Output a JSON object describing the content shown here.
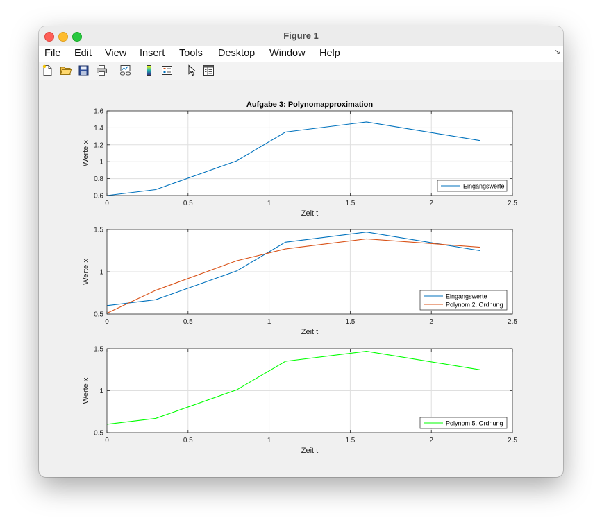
{
  "window": {
    "title": "Figure 1"
  },
  "menubar": {
    "items": [
      "File",
      "Edit",
      "View",
      "Insert",
      "Tools",
      "Desktop",
      "Window",
      "Help"
    ],
    "corner_icon": "dock-arrow-icon"
  },
  "toolbar": {
    "icons": [
      "new-figure-icon",
      "open-file-icon",
      "save-icon",
      "print-icon",
      "link-axes-icon",
      "colorbar-icon",
      "legend-icon",
      "pointer-icon",
      "property-inspector-icon"
    ]
  },
  "colors": {
    "blue": "#0072bd",
    "orange": "#d95319",
    "green": "#00ff00"
  },
  "chart_data": [
    {
      "type": "line",
      "title": "Aufgabe 3: Polynomapproximation",
      "xlabel": "Zeit t",
      "ylabel": "Werte x",
      "xlim": [
        0,
        2.5
      ],
      "ylim": [
        0.6,
        1.6
      ],
      "xticks": [
        "0",
        "0.5",
        "1",
        "1.5",
        "2",
        "2.5"
      ],
      "yticks": [
        "0.6",
        "0.8",
        "1",
        "1.2",
        "1.4",
        "1.6"
      ],
      "grid": true,
      "legend_position": "bottom-right",
      "series": [
        {
          "name": "Eingangswerte",
          "color": "#0072bd",
          "x": [
            0,
            0.3,
            0.8,
            1.1,
            1.6,
            2.3
          ],
          "y": [
            0.6,
            0.67,
            1.01,
            1.35,
            1.47,
            1.25
          ]
        }
      ]
    },
    {
      "type": "line",
      "title": "",
      "xlabel": "Zeit t",
      "ylabel": "Werte x",
      "xlim": [
        0,
        2.5
      ],
      "ylim": [
        0.5,
        1.5
      ],
      "xticks": [
        "0",
        "0.5",
        "1",
        "1.5",
        "2",
        "2.5"
      ],
      "yticks": [
        "0.5",
        "1",
        "1.5"
      ],
      "grid": true,
      "legend_position": "bottom-right",
      "series": [
        {
          "name": "Eingangswerte",
          "color": "#0072bd",
          "x": [
            0,
            0.3,
            0.8,
            1.1,
            1.6,
            2.3
          ],
          "y": [
            0.6,
            0.67,
            1.01,
            1.35,
            1.47,
            1.25
          ]
        },
        {
          "name": "Polynom 2. Ordnung",
          "color": "#d95319",
          "x": [
            0,
            0.3,
            0.8,
            1.1,
            1.6,
            2.3
          ],
          "y": [
            0.51,
            0.78,
            1.13,
            1.27,
            1.39,
            1.29
          ]
        }
      ]
    },
    {
      "type": "line",
      "title": "",
      "xlabel": "Zeit t",
      "ylabel": "Werte x",
      "xlim": [
        0,
        2.5
      ],
      "ylim": [
        0.5,
        1.5
      ],
      "xticks": [
        "0",
        "0.5",
        "1",
        "1.5",
        "2",
        "2.5"
      ],
      "yticks": [
        "0.5",
        "1",
        "1.5"
      ],
      "grid": true,
      "legend_position": "bottom-right",
      "series": [
        {
          "name": "Polynom 5. Ordnung",
          "color": "#00ff00",
          "x": [
            0,
            0.3,
            0.8,
            1.1,
            1.6,
            2.3
          ],
          "y": [
            0.6,
            0.67,
            1.01,
            1.35,
            1.47,
            1.25
          ]
        }
      ]
    }
  ]
}
